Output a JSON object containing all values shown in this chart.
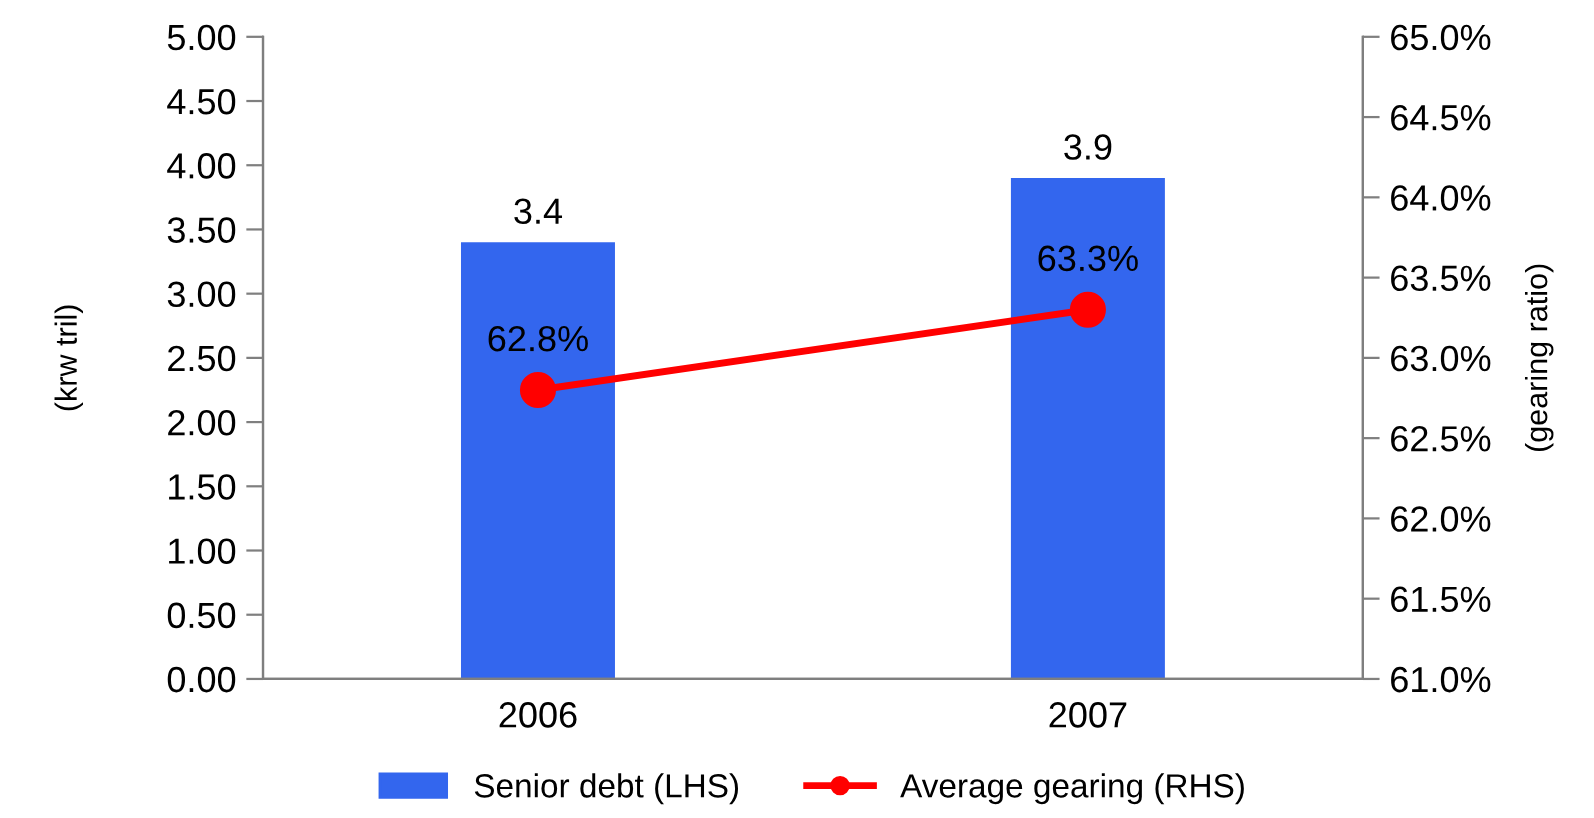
{
  "chart_data": {
    "type": "bar",
    "ylabel": "(krw tril)",
    "y2label": "(gearing ratio)",
    "categories": [
      "2006",
      "2007"
    ],
    "series": [
      {
        "name": "Senior debt (LHS)",
        "color": "#3366ee",
        "values": [
          3.4,
          3.9
        ],
        "value_labels": [
          "3.4",
          "3.9"
        ]
      },
      {
        "name": "Average gearing (RHS)",
        "type": "line",
        "axis": "y2",
        "color": "#ff0000",
        "marker": "circle",
        "values": [
          62.8,
          63.3
        ],
        "value_labels": [
          "62.8%",
          "63.3%"
        ]
      }
    ],
    "ylim": [
      0,
      5
    ],
    "yticks": [
      {
        "value": 0,
        "label": "0.00"
      },
      {
        "value": 0.5,
        "label": "0.50"
      },
      {
        "value": 1,
        "label": "1.00"
      },
      {
        "value": 1.5,
        "label": "1.50"
      },
      {
        "value": 2,
        "label": "2.00"
      },
      {
        "value": 2.5,
        "label": "2.50"
      },
      {
        "value": 3,
        "label": "3.00"
      },
      {
        "value": 3.5,
        "label": "3.50"
      },
      {
        "value": 4,
        "label": "4.00"
      },
      {
        "value": 4.5,
        "label": "4.50"
      },
      {
        "value": 5,
        "label": "5.00"
      }
    ],
    "y2lim": [
      61,
      65
    ],
    "y2ticks": [
      {
        "value": 61,
        "label": "61.0%"
      },
      {
        "value": 61.5,
        "label": "61.5%"
      },
      {
        "value": 62,
        "label": "62.0%"
      },
      {
        "value": 62.5,
        "label": "62.5%"
      },
      {
        "value": 63,
        "label": "63.0%"
      },
      {
        "value": 63.5,
        "label": "63.5%"
      },
      {
        "value": 64,
        "label": "64.0%"
      },
      {
        "value": 64.5,
        "label": "64.5%"
      },
      {
        "value": 65,
        "label": "65.0%"
      }
    ],
    "grid": false,
    "legend": "bottom"
  }
}
